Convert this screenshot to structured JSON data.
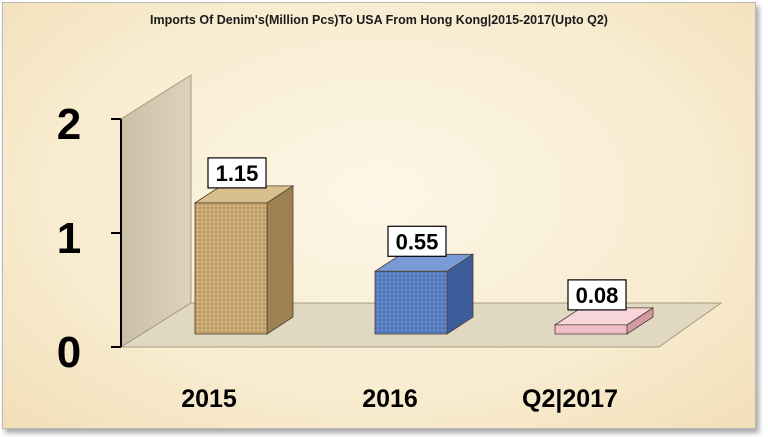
{
  "chart_data": {
    "type": "bar",
    "title": "Imports Of Denim's(Million Pcs)To USA From Hong Kong|2015-2017(Upto Q2)",
    "categories": [
      "2015",
      "2016",
      "Q2|2017"
    ],
    "values": [
      1.15,
      0.55,
      0.08
    ],
    "data_labels": [
      "1.15",
      "0.55",
      "0.08"
    ],
    "y_ticks": [
      "0",
      "1",
      "2"
    ],
    "ylim": [
      0,
      2
    ],
    "grid": false,
    "legend": "none",
    "style": "3d-bar",
    "colors": {
      "bar_fronts": [
        "#c8a870",
        "#5b7fc4",
        "#f2c0c8"
      ],
      "bar_sides": [
        "#9e8150",
        "#3d5c9a",
        "#d49aa4"
      ],
      "bar_tops": [
        "#d9bf8e",
        "#7a9ad6",
        "#f7d5db"
      ],
      "back_wall": "#d2c8b2",
      "floor": "#e0d8c0"
    }
  }
}
